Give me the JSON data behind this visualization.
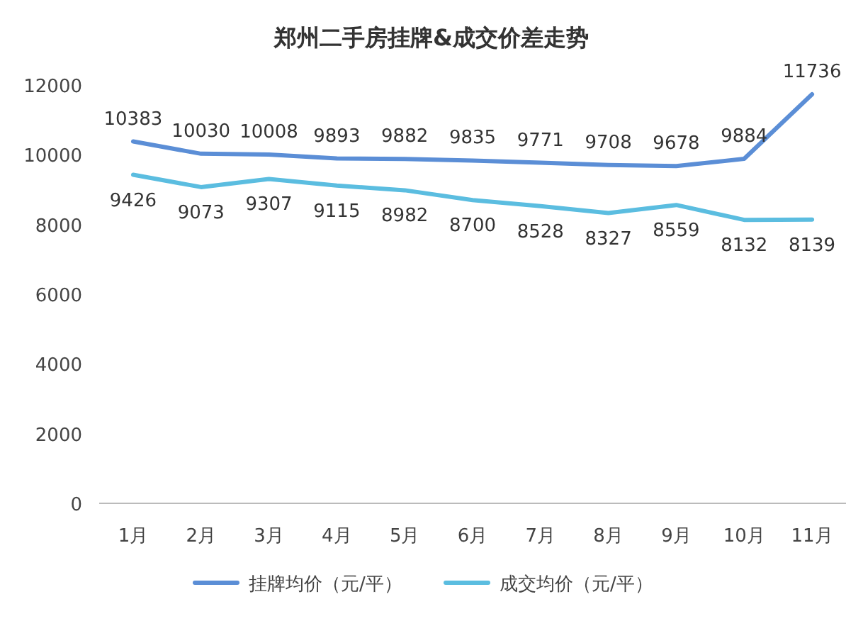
{
  "chart_data": {
    "type": "line",
    "title": "郑州二手房挂牌&成交价差走势",
    "categories": [
      "1月",
      "2月",
      "3月",
      "4月",
      "5月",
      "6月",
      "7月",
      "8月",
      "9月",
      "10月",
      "11月"
    ],
    "series": [
      {
        "name": "挂牌均价（元/平）",
        "color": "#5b8ed6",
        "values": [
          10383,
          10030,
          10008,
          9893,
          9882,
          9835,
          9771,
          9708,
          9678,
          9884,
          11736
        ]
      },
      {
        "name": "成交均价（元/平）",
        "color": "#5bbde0",
        "values": [
          9426,
          9073,
          9307,
          9115,
          8982,
          8700,
          8528,
          8327,
          8559,
          8132,
          8139
        ]
      }
    ],
    "ylim": [
      0,
      12000
    ],
    "yticks": [
      0,
      2000,
      4000,
      6000,
      8000,
      10000,
      12000
    ],
    "data_labels": true,
    "legend": "bottom"
  }
}
